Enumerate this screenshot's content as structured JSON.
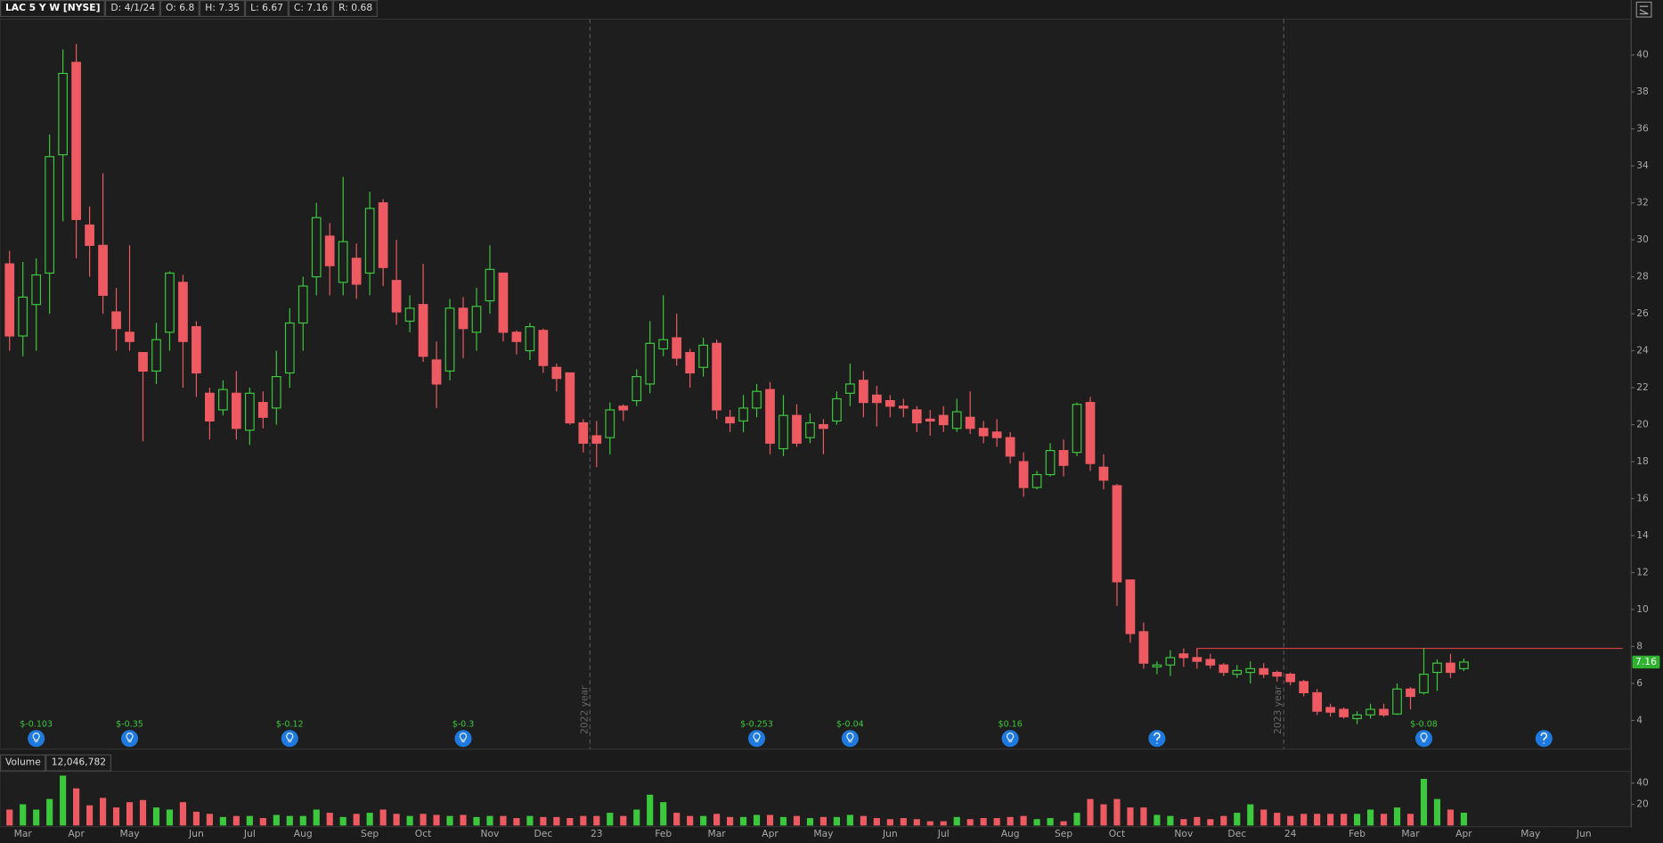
{
  "chart_data": {
    "type": "candlestick",
    "title": "LAC 5 Y W [NYSE]",
    "header": [
      "D: 4/1/24",
      "O: 6.8",
      "H: 7.35",
      "L: 6.67",
      "C: 7.16",
      "R: 0.68"
    ],
    "categories": [
      null,
      "Mar",
      null,
      null,
      null,
      "Apr",
      null,
      null,
      null,
      "May",
      null,
      null,
      null,
      null,
      "Jun",
      null,
      null,
      null,
      "Jul",
      null,
      null,
      null,
      "Aug",
      null,
      null,
      null,
      null,
      "Sep",
      null,
      null,
      null,
      "Oct",
      null,
      null,
      null,
      null,
      "Nov",
      null,
      null,
      null,
      "Dec",
      null,
      null,
      null,
      "23",
      null,
      null,
      null,
      null,
      "Feb",
      null,
      null,
      null,
      "Mar",
      null,
      null,
      null,
      "Apr",
      null,
      null,
      null,
      "May",
      null,
      null,
      null,
      null,
      "Jun",
      null,
      null,
      null,
      "Jul",
      null,
      null,
      null,
      null,
      "Aug",
      null,
      null,
      null,
      "Sep",
      null,
      null,
      null,
      "Oct",
      null,
      null,
      null,
      null,
      "Nov",
      null,
      null,
      null,
      "Dec",
      null,
      null,
      null,
      "24",
      null,
      null,
      null,
      null,
      "Feb",
      null,
      null,
      null,
      "Mar",
      null,
      null,
      null,
      "Apr",
      null,
      null,
      null,
      null,
      "May",
      null,
      null,
      null,
      "Jun",
      null,
      null,
      null
    ],
    "open": [
      28.7,
      24.8,
      26.5,
      28.2,
      34.6,
      39.6,
      30.8,
      29.7,
      26.1,
      25,
      23.9,
      22.9,
      25,
      27.7,
      25.3,
      21.7,
      20.8,
      21.7,
      19.7,
      21.2,
      20.9,
      22.8,
      25.5,
      28,
      30.2,
      27.7,
      29,
      28.2,
      32,
      27.8,
      25.6,
      26.5,
      23.5,
      22.9,
      26.3,
      25,
      26.7,
      28.2,
      25,
      24,
      25.1,
      23.1,
      22.8,
      20.1,
      19.4,
      19.3,
      21,
      21.3,
      22.2,
      24.1,
      24.7,
      23.9,
      23.1,
      24.4,
      20.4,
      20.2,
      20.9,
      21.9,
      18.7,
      20.5,
      19.3,
      20,
      20.2,
      21.7,
      22.4,
      21.6,
      21.3,
      21,
      20.8,
      20.3,
      20.5,
      19.8,
      20.4,
      19.8,
      19.6,
      19.3,
      18,
      16.6,
      17.3,
      18.6,
      18.5,
      21.2,
      17.7,
      16.7,
      11.6,
      8.8,
      6.9,
      7,
      7.6,
      7.4,
      7.3,
      7,
      6.5,
      6.6,
      6.8,
      6.6,
      6.5,
      6.1,
      5.5,
      4.7,
      4.6,
      4.1,
      4.3,
      4.6,
      4.35,
      5.7,
      5.5,
      6.6,
      7.1,
      6.8,
      null,
      null,
      null,
      null,
      null,
      null,
      null,
      null,
      null,
      null,
      null,
      null
    ],
    "high": [
      29.4,
      28.8,
      29,
      35.7,
      40.3,
      40.6,
      31.8,
      33.6,
      27.4,
      29.7,
      23.9,
      25.5,
      28.3,
      28.1,
      25.6,
      22,
      22.4,
      22.9,
      22,
      21.8,
      24,
      26.3,
      28,
      32,
      30.9,
      33.4,
      29.8,
      32.6,
      32.2,
      30,
      27,
      28.7,
      24.5,
      26.8,
      26.9,
      27.4,
      29.7,
      28.2,
      25.1,
      25.5,
      25.2,
      23.3,
      22.8,
      20.3,
      20.2,
      21.2,
      21.1,
      23,
      25.6,
      27,
      26,
      24.1,
      24.7,
      24.6,
      20.8,
      21.6,
      22.2,
      22.3,
      21.6,
      21.1,
      20.6,
      20.3,
      21.8,
      23.3,
      22.9,
      22.1,
      21.6,
      21.4,
      21,
      20.8,
      21,
      21.4,
      21.8,
      20.2,
      20.3,
      19.6,
      18.5,
      17.5,
      19,
      19.2,
      21.2,
      21.5,
      18.4,
      16.8,
      11.6,
      9.3,
      7.2,
      7.8,
      7.9,
      7.9,
      7.6,
      7.1,
      7,
      7.2,
      7.1,
      6.7,
      6.6,
      6.2,
      5.7,
      4.9,
      4.7,
      4.5,
      4.9,
      4.9,
      6,
      5.8,
      7.9,
      7.3,
      7.6,
      7.35,
      null,
      null,
      null,
      null,
      null,
      null,
      null,
      null,
      null,
      null,
      null,
      null
    ],
    "low": [
      24,
      23.7,
      24,
      26,
      31,
      29,
      28,
      26,
      24,
      24,
      19.1,
      22.2,
      24,
      22,
      21.5,
      19.2,
      20.5,
      19.2,
      18.9,
      19.8,
      20,
      22,
      24,
      27,
      27,
      27,
      26.8,
      27,
      27.5,
      25.4,
      25,
      23.4,
      20.9,
      22.4,
      23.6,
      24,
      26,
      24.5,
      23.8,
      23.5,
      22.8,
      21.8,
      20,
      18.5,
      17.7,
      18.4,
      20.2,
      21,
      21.7,
      23.7,
      23.2,
      22,
      22.6,
      20.3,
      19.6,
      19.6,
      20.4,
      18.4,
      18.3,
      18.8,
      19,
      18.4,
      20,
      21,
      20.4,
      19.9,
      20.4,
      20.4,
      19.6,
      19.4,
      19.6,
      19.6,
      19.5,
      19,
      18.8,
      17.9,
      16.1,
      16.5,
      17.2,
      17.2,
      18.3,
      17.5,
      16.5,
      10.2,
      8.2,
      6.8,
      6.5,
      6.4,
      6.9,
      6.8,
      6.8,
      6.4,
      6.3,
      6,
      6.3,
      6.1,
      5.9,
      5.3,
      4.3,
      4.2,
      4.1,
      3.8,
      4.1,
      4.2,
      4.3,
      4.6,
      5.4,
      5.6,
      6.3,
      6.67,
      null,
      null,
      null,
      null,
      null,
      null,
      null,
      null,
      null,
      null,
      null,
      null
    ],
    "close": [
      24.8,
      26.9,
      28.1,
      34.5,
      39,
      31.1,
      29.7,
      27,
      25.2,
      24.5,
      22.9,
      24.6,
      28.2,
      24.5,
      22.8,
      20.2,
      21.9,
      19.8,
      21.7,
      20.4,
      22.6,
      25.5,
      27.5,
      31.2,
      28.6,
      29.9,
      27.6,
      31.7,
      28.5,
      26.1,
      26.3,
      23.7,
      22.2,
      26.3,
      25.2,
      26.4,
      28.4,
      25,
      24.5,
      25.3,
      23.2,
      22.5,
      20.1,
      19,
      19,
      20.8,
      20.8,
      22.6,
      24.4,
      24.6,
      23.6,
      22.8,
      24.3,
      20.8,
      20.1,
      20.9,
      21.8,
      19,
      20.5,
      19,
      20.1,
      19.8,
      21.4,
      22.2,
      21.2,
      21.2,
      21,
      20.9,
      20.1,
      20.2,
      20,
      20.7,
      19.8,
      19.4,
      19.3,
      18.3,
      16.6,
      17.3,
      18.6,
      17.8,
      21.1,
      17.9,
      17,
      11.5,
      8.7,
      7.1,
      7,
      7.4,
      7.4,
      7.2,
      7,
      6.6,
      6.7,
      6.8,
      6.5,
      6.4,
      6.1,
      5.5,
      4.5,
      4.45,
      4.2,
      4.3,
      4.6,
      4.3,
      5.7,
      5.3,
      6.5,
      7.1,
      6.6,
      7.16,
      null,
      null,
      null,
      null,
      null,
      null,
      null,
      null,
      null,
      null,
      null,
      null
    ],
    "up_color": "#3cc83c",
    "down_color": "#ee5a62",
    "ylim": [
      2.45,
      41.94
    ],
    "yticks": [
      4,
      6,
      8,
      10,
      12,
      14,
      16,
      18,
      20,
      22,
      24,
      26,
      28,
      30,
      32,
      34,
      36,
      38,
      40
    ],
    "year_separators": [
      "2022 year",
      "2023 year"
    ],
    "hline": {
      "value": 7.9,
      "start": 89,
      "color": "#d9413f"
    },
    "earnings": [
      {
        "at": 2,
        "label": "$-0.103"
      },
      {
        "at": 9,
        "label": "$-0.35"
      },
      {
        "at": 21,
        "label": "$-0.12"
      },
      {
        "at": 34,
        "label": "$-0.3"
      },
      {
        "at": 56,
        "label": "$-0.253"
      },
      {
        "at": 63,
        "label": "$-0.04"
      },
      {
        "at": 75,
        "label": "$0.16"
      },
      {
        "at": 86
      },
      {
        "at": 106,
        "label": "$-0.08"
      },
      {
        "at": 115
      }
    ],
    "volume": {
      "title": "Volume",
      "total_label": "12,046,782",
      "values": [
        15,
        20,
        15,
        25,
        47,
        35,
        19,
        26,
        17,
        22,
        24,
        17,
        15,
        22,
        13,
        11,
        8,
        9,
        9,
        7,
        10,
        9,
        9,
        15,
        12,
        8,
        11,
        12,
        15,
        11,
        9,
        11,
        10,
        9,
        10,
        8,
        9,
        9,
        7,
        9,
        8,
        8,
        7,
        9,
        9,
        12,
        9,
        15,
        29,
        22,
        12,
        9,
        9,
        11,
        8,
        8,
        10,
        10,
        8,
        9,
        7,
        8,
        8,
        10,
        9,
        7,
        6,
        7,
        6,
        4,
        4,
        8,
        6,
        7,
        7,
        8,
        9,
        6,
        7,
        4,
        12,
        25,
        20,
        25,
        17,
        17,
        10,
        9,
        6,
        8,
        6,
        9,
        12,
        20,
        15,
        12,
        9,
        11,
        11,
        11,
        11,
        11,
        15,
        11,
        17,
        11,
        44,
        25,
        15,
        12.05,
        null,
        null,
        null,
        null,
        null,
        null,
        null,
        null,
        null,
        null,
        null,
        null
      ],
      "ylim": [
        0,
        50
      ],
      "yticks": [
        20,
        40
      ]
    }
  }
}
